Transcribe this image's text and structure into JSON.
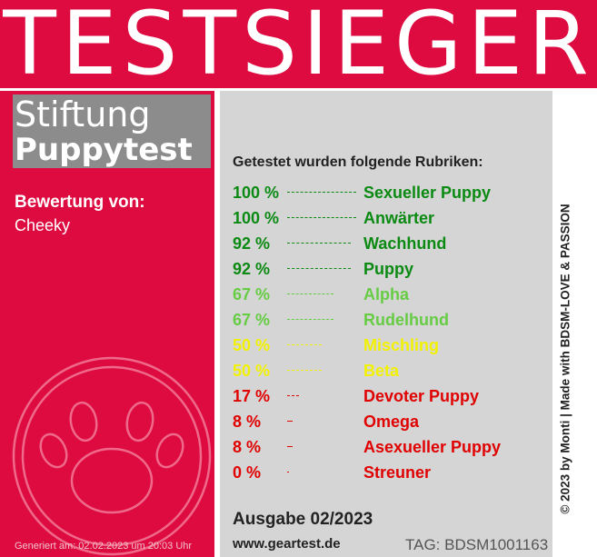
{
  "banner": {
    "title": "TESTSIEGER"
  },
  "brand": {
    "line1": "Stiftung",
    "line2": "Puppytest"
  },
  "rating": {
    "label": "Bewertung von:",
    "name": "Cheeky"
  },
  "generated": "Generiert am: 02.02.2023 um 20:03 Uhr",
  "rubriken": {
    "title": "Getestet wurden folgende Rubriken:",
    "items": [
      {
        "percent": "100 %",
        "category": "Sexueller Puppy",
        "color": "#0a8a12"
      },
      {
        "percent": "100 %",
        "category": "Anwärter",
        "color": "#0a8a12"
      },
      {
        "percent": "92 %",
        "category": "Wachhund",
        "color": "#0a8a12"
      },
      {
        "percent": "92 %",
        "category": "Puppy",
        "color": "#0a8a12"
      },
      {
        "percent": "67 %",
        "category": "Alpha",
        "color": "#66cc44"
      },
      {
        "percent": "67 %",
        "category": "Rudelhund",
        "color": "#66cc44"
      },
      {
        "percent": "50 %",
        "category": "Mischling",
        "color": "#f2f200"
      },
      {
        "percent": "50 %",
        "category": "Beta",
        "color": "#f2f200"
      },
      {
        "percent": "17 %",
        "category": "Devoter Puppy",
        "color": "#e00000"
      },
      {
        "percent": "8 %",
        "category": "Omega",
        "color": "#e00000"
      },
      {
        "percent": "8 %",
        "category": "Asexueller Puppy",
        "color": "#e00000"
      },
      {
        "percent": "0 %",
        "category": "Streuner",
        "color": "#e00000"
      }
    ]
  },
  "footer": {
    "issue": "Ausgabe 02/2023",
    "website": "www.geartest.de",
    "tag": "TAG: BDSM1001163"
  },
  "credit": "© 2023 by Monti | Made with BDSM-LOVE & PASSION",
  "colors": {
    "brand_red": "#dd0b40",
    "panel_gray": "#d6d5d6",
    "box_gray": "#8c8c8c"
  },
  "icons": {
    "paw": "paw-icon"
  }
}
